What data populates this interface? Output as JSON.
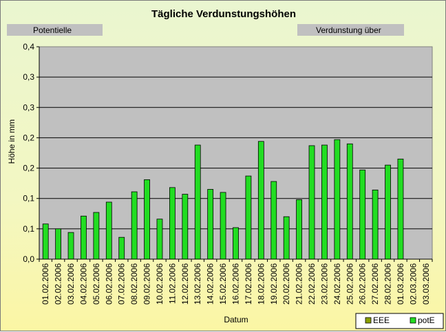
{
  "chart_data": {
    "type": "bar",
    "title": "Tägliche Verdunstungshöhen",
    "left_box_label": "Potentielle",
    "right_box_label": "Verdunstung über",
    "xlabel": "Datum",
    "ylabel": "Höhe in mm",
    "y_tick_labels": [
      "0,0",
      "0,1",
      "0,1",
      "0,2",
      "0,2",
      "0,3",
      "0,3",
      "0,4"
    ],
    "ylim": [
      0,
      0.35
    ],
    "grid": true,
    "legend_position": "bottom-right",
    "categories": [
      "01.02.2006",
      "02.02.2006",
      "03.02.2006",
      "04.02.2006",
      "05.02.2006",
      "06.02.2006",
      "07.02.2006",
      "08.02.2006",
      "09.02.2006",
      "10.02.2006",
      "11.02.2006",
      "12.02.2006",
      "13.02.2006",
      "14.02.2006",
      "15.02.2006",
      "16.02.2006",
      "17.02.2006",
      "18.02.2006",
      "19.02.2006",
      "20.02.2006",
      "21.02.2006",
      "22.02.2006",
      "23.02.2006",
      "24.02.2006",
      "25.02.2006",
      "26.02.2006",
      "27.02.2006",
      "28.02.2006",
      "01.03.2006",
      "02.03.2006",
      "03.03.2006"
    ],
    "series": [
      {
        "name": "EEE",
        "color": "#8aa000",
        "values": [
          null,
          null,
          null,
          null,
          null,
          null,
          null,
          null,
          null,
          null,
          null,
          null,
          null,
          null,
          null,
          null,
          null,
          null,
          null,
          null,
          null,
          null,
          null,
          null,
          null,
          null,
          null,
          null,
          null,
          null,
          null
        ]
      },
      {
        "name": "potE",
        "color": "#22dd22",
        "values": [
          0.058,
          0.05,
          0.044,
          0.071,
          0.077,
          0.094,
          0.036,
          0.111,
          0.131,
          0.066,
          0.118,
          0.107,
          0.188,
          0.115,
          0.11,
          0.052,
          0.137,
          0.194,
          0.128,
          0.07,
          0.098,
          0.187,
          0.188,
          0.197,
          0.19,
          0.147,
          0.114,
          0.155,
          0.165,
          null,
          null
        ]
      }
    ]
  }
}
